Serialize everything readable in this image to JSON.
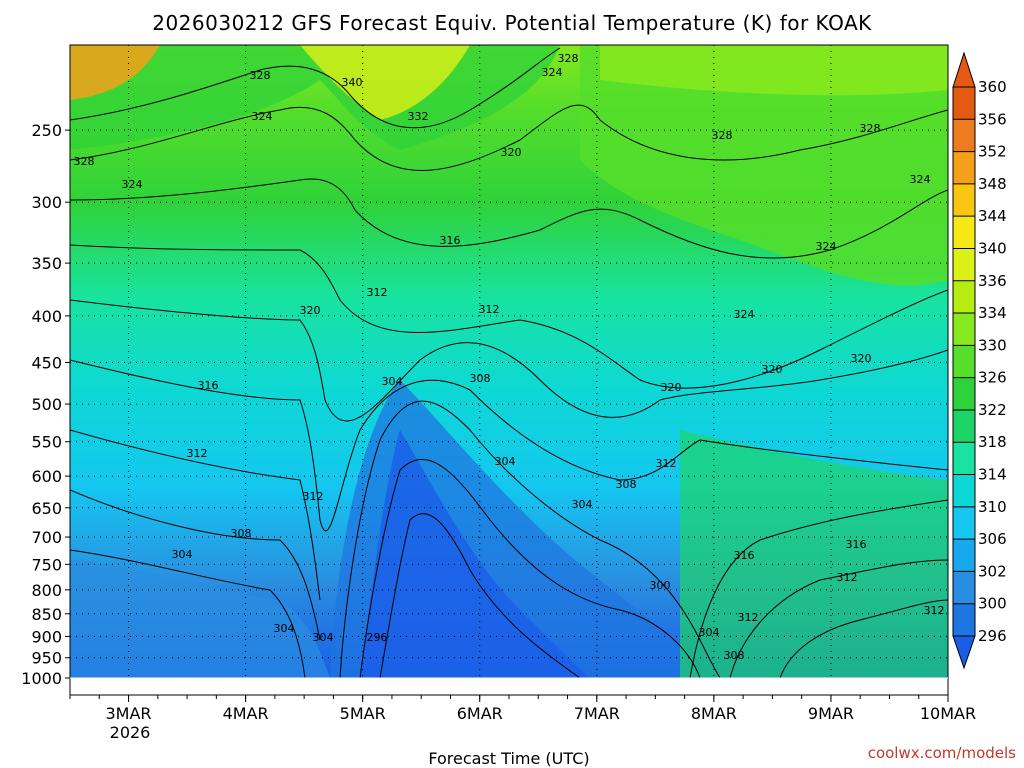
{
  "chart_data": {
    "type": "heatmap",
    "title": "2026030212 GFS Forecast Equiv. Potential Temperature (K) for KOAK",
    "xlabel": "Forecast Time (UTC)",
    "ylabel": "",
    "x_ticks": [
      "3MAR",
      "4MAR",
      "5MAR",
      "6MAR",
      "7MAR",
      "8MAR",
      "9MAR",
      "10MAR"
    ],
    "x_sublabel": "2026",
    "y_ticks": [
      250,
      300,
      350,
      400,
      450,
      500,
      550,
      600,
      650,
      700,
      750,
      800,
      850,
      900,
      950,
      1000
    ],
    "y_scale": "log pressure (hPa), inverted",
    "xlim_days": [
      2.5,
      10.0
    ],
    "ylim_hpa": [
      1000,
      200
    ],
    "colorbar": {
      "levels": [
        296,
        300,
        302,
        306,
        310,
        314,
        318,
        322,
        326,
        330,
        334,
        336,
        340,
        344,
        348,
        352,
        356,
        360
      ],
      "colors": [
        "#1a5ee8",
        "#1f76e0",
        "#2a8ee0",
        "#18a8ee",
        "#14c6f0",
        "#0ed8d6",
        "#18e3a0",
        "#1ed468",
        "#2fd23a",
        "#55de2a",
        "#86e81e",
        "#b6ec10",
        "#ddf015",
        "#f6e814",
        "#f7c512",
        "#f4a01a",
        "#ee7c1e",
        "#e45a12"
      ]
    },
    "contour_labels": [
      "328",
      "340",
      "328",
      "324",
      "324",
      "332",
      "320",
      "328",
      "328",
      "328",
      "324",
      "324",
      "316",
      "324",
      "312",
      "312",
      "324",
      "320",
      "320",
      "316",
      "304",
      "308",
      "320",
      "320",
      "312",
      "304",
      "312",
      "308",
      "312",
      "304",
      "308",
      "304",
      "316",
      "316",
      "312",
      "300",
      "304",
      "304",
      "296",
      "312",
      "304",
      "312",
      "308"
    ],
    "credit": "coolwx.com/models"
  }
}
